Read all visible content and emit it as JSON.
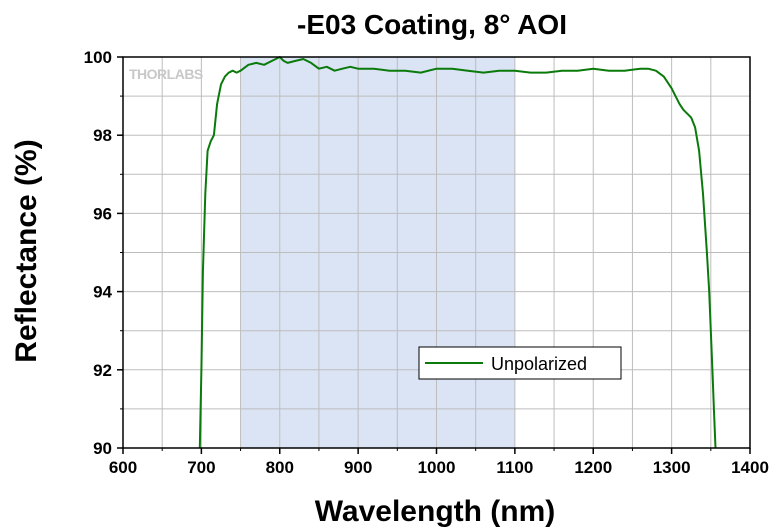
{
  "chart_data": {
    "type": "line",
    "title": "-E03 Coating, 8° AOI",
    "xlabel": "Wavelength (nm)",
    "ylabel": "Reflectance (%)",
    "xlim": [
      600,
      1400
    ],
    "ylim": [
      90,
      100
    ],
    "xticks": [
      600,
      700,
      800,
      900,
      1000,
      1100,
      1200,
      1300,
      1400
    ],
    "yticks": [
      90,
      92,
      94,
      96,
      98,
      100
    ],
    "grid": true,
    "legend_position": "center-right",
    "watermark": "THORLABS",
    "highlight_band": [
      750,
      1100
    ],
    "series": [
      {
        "name": "Unpolarized",
        "color": "#0a7a0a",
        "x": [
          698,
          700,
          702,
          705,
          708,
          712,
          716,
          720,
          725,
          730,
          735,
          740,
          745,
          750,
          760,
          770,
          780,
          790,
          800,
          805,
          810,
          820,
          830,
          840,
          850,
          860,
          870,
          880,
          890,
          900,
          920,
          940,
          960,
          980,
          1000,
          1020,
          1040,
          1060,
          1080,
          1100,
          1120,
          1140,
          1160,
          1180,
          1200,
          1220,
          1240,
          1260,
          1270,
          1280,
          1290,
          1295,
          1300,
          1305,
          1310,
          1315,
          1320,
          1325,
          1330,
          1335,
          1340,
          1345,
          1348,
          1350,
          1352,
          1354,
          1356
        ],
        "y": [
          90.0,
          92.0,
          94.5,
          96.5,
          97.6,
          97.85,
          98.0,
          98.8,
          99.3,
          99.5,
          99.6,
          99.65,
          99.6,
          99.65,
          99.8,
          99.85,
          99.8,
          99.9,
          100.0,
          99.9,
          99.85,
          99.9,
          99.95,
          99.85,
          99.7,
          99.75,
          99.65,
          99.7,
          99.75,
          99.7,
          99.7,
          99.65,
          99.65,
          99.6,
          99.7,
          99.7,
          99.65,
          99.6,
          99.65,
          99.65,
          99.6,
          99.6,
          99.65,
          99.65,
          99.7,
          99.65,
          99.65,
          99.7,
          99.7,
          99.65,
          99.5,
          99.35,
          99.2,
          99.0,
          98.8,
          98.65,
          98.55,
          98.45,
          98.2,
          97.6,
          96.5,
          95.0,
          94.0,
          93.0,
          92.0,
          91.0,
          90.0
        ]
      }
    ]
  }
}
